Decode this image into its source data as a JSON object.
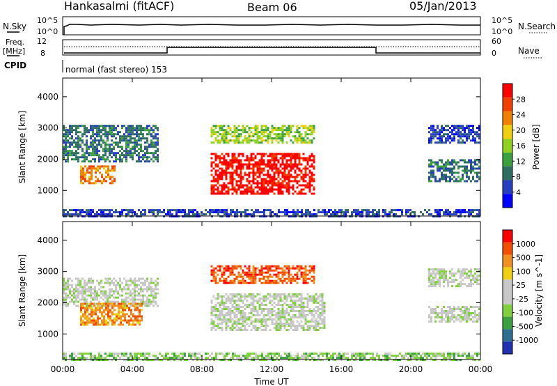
{
  "header": {
    "station": "Hankasalmi (fitACF)",
    "beam": "Beam 06",
    "date": "05/Jan/2013"
  },
  "panels": {
    "nsky": {
      "label": "N.Sky",
      "tick_top": "10^5",
      "tick_bottom": "10^0",
      "right_label": "N.Search",
      "right_tick_top": "10^5",
      "right_tick_bottom": "10^0"
    },
    "freq": {
      "label_line1": "Freq.",
      "label_line2": "[MHz]",
      "tick_top": "12",
      "tick_bottom": "8",
      "right_label": "Nave",
      "right_tick_top": "60",
      "right_tick_bottom": "0"
    },
    "cpid": {
      "label": "CPID",
      "value": "normal (fast stereo) 153"
    }
  },
  "chart_data": [
    {
      "type": "heatmap",
      "name": "power",
      "ylabel": "Slant Range [km]",
      "yticks": [
        1000,
        2000,
        3000,
        4000
      ],
      "ylim": [
        180,
        4600
      ],
      "xlim": [
        0,
        24
      ],
      "colorbar": {
        "label": "Power [dB]",
        "ticks": [
          "4",
          "8",
          "12",
          "16",
          "20",
          "24",
          "28"
        ],
        "colors": [
          "#0000ff",
          "#2840c0",
          "#2e6e60",
          "#3aa040",
          "#90d020",
          "#f0d010",
          "#f08000",
          "#f04000",
          "#ff0000"
        ]
      },
      "regions": [
        {
          "t": [
            0.0,
            5.5
          ],
          "r": [
            1900,
            3100
          ],
          "level": 2
        },
        {
          "t": [
            1.0,
            3.0
          ],
          "r": [
            1200,
            1800
          ],
          "level": 6
        },
        {
          "t": [
            8.5,
            14.5
          ],
          "r": [
            900,
            2200
          ],
          "level": 8
        },
        {
          "t": [
            8.5,
            14.5
          ],
          "r": [
            2500,
            3100
          ],
          "level": 4
        },
        {
          "t": [
            21.0,
            24.0
          ],
          "r": [
            1300,
            2000
          ],
          "level": 2
        },
        {
          "t": [
            21.0,
            24.0
          ],
          "r": [
            2500,
            3100
          ],
          "level": 1
        },
        {
          "t": [
            0.0,
            24.0
          ],
          "r": [
            180,
            400
          ],
          "level": 1
        }
      ]
    },
    {
      "type": "heatmap",
      "name": "velocity",
      "ylabel": "Slant Range [km]",
      "yticks": [
        1000,
        2000,
        3000,
        4000
      ],
      "ylim": [
        180,
        4600
      ],
      "xlim": [
        0,
        24
      ],
      "xticks": [
        "00:00",
        "04:00",
        "08:00",
        "12:00",
        "16:00",
        "20:00",
        "00:00"
      ],
      "xlabel": "Time UT",
      "colorbar": {
        "label": "Velocity [m s^-1]",
        "ticks": [
          "1000",
          "500",
          "100",
          "25",
          "-25",
          "-100",
          "-500",
          "-1000"
        ],
        "colors": [
          "#2030b0",
          "#2e6e90",
          "#3aa040",
          "#80d040",
          "#c8c8c8",
          "#c8c8c8",
          "#f0d010",
          "#f09020",
          "#f05000",
          "#ff0000"
        ]
      },
      "regions": [
        {
          "t": [
            0.0,
            5.5
          ],
          "r": [
            1900,
            2800
          ],
          "level": 4
        },
        {
          "t": [
            1.0,
            4.5
          ],
          "r": [
            1300,
            2000
          ],
          "level": 7
        },
        {
          "t": [
            8.5,
            15.0
          ],
          "r": [
            1100,
            2300
          ],
          "level": 4
        },
        {
          "t": [
            8.5,
            14.5
          ],
          "r": [
            2600,
            3200
          ],
          "level": 8
        },
        {
          "t": [
            21.0,
            24.0
          ],
          "r": [
            1400,
            1900
          ],
          "level": 4
        },
        {
          "t": [
            21.0,
            24.0
          ],
          "r": [
            2500,
            3100
          ],
          "level": 4
        },
        {
          "t": [
            0.0,
            24.0
          ],
          "r": [
            180,
            400
          ],
          "level": 3
        }
      ]
    }
  ]
}
